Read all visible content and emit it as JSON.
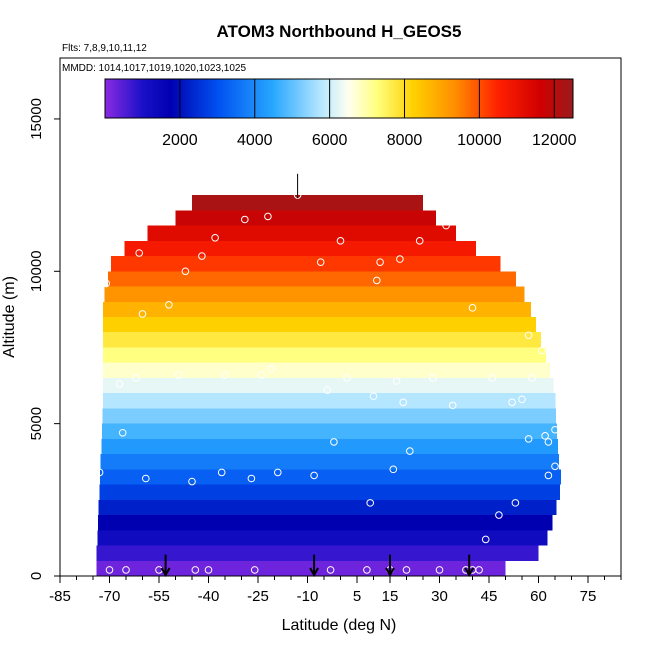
{
  "chart_data": {
    "type": "heatmap",
    "title": "ATOM3 Northbound H_GEOS5",
    "notes": {
      "flights": "Flts: 7,8,9,10,11,12",
      "dates": "MMDD: 1014,1017,1019,1020,1023,1025"
    },
    "xlabel": "Latitude (deg N)",
    "ylabel": "Altitude (m)",
    "xlim": [
      -85,
      85
    ],
    "ylim": [
      0,
      17000
    ],
    "x_major_ticks": [
      -85,
      -70,
      -55,
      -40,
      -25,
      -10,
      5,
      15,
      30,
      45,
      60,
      75
    ],
    "x_tick_labels": [
      "-85",
      "-70",
      "-55",
      "-40",
      "-25",
      "-10",
      "5",
      "15",
      "30",
      "45",
      "60",
      "75"
    ],
    "y_ticks": [
      0,
      5000,
      10000,
      15000
    ],
    "y_tick_labels": [
      "0",
      "5000",
      "10000",
      "15000"
    ],
    "colorbar": {
      "range": [
        0,
        12500
      ],
      "ticks": [
        2000,
        4000,
        6000,
        8000,
        10000,
        12000
      ],
      "tick_labels": [
        "2000",
        "4000",
        "6000",
        "8000",
        "10000",
        "12000"
      ],
      "stops": [
        [
          0,
          "#8a2be2"
        ],
        [
          0.08,
          "#1a10c8"
        ],
        [
          0.14,
          "#0000b0"
        ],
        [
          0.24,
          "#0050f0"
        ],
        [
          0.36,
          "#28a8ff"
        ],
        [
          0.46,
          "#b4e6ff"
        ],
        [
          0.52,
          "#fffff0"
        ],
        [
          0.58,
          "#ffff80"
        ],
        [
          0.66,
          "#ffd000"
        ],
        [
          0.75,
          "#ff8c00"
        ],
        [
          0.84,
          "#ff2000"
        ],
        [
          0.93,
          "#d00000"
        ],
        [
          1,
          "#9b1b1b"
        ]
      ]
    },
    "field": {
      "level_step": 500,
      "altitude_envelope": [
        [
          -74,
          500
        ],
        [
          -72,
          5500
        ],
        [
          -72,
          9000
        ],
        [
          -69,
          10500
        ],
        [
          -62,
          11000
        ],
        [
          -55,
          11500
        ],
        [
          -45,
          12000
        ],
        [
          -28,
          12500
        ],
        [
          5,
          12500
        ],
        [
          25,
          12000
        ],
        [
          33,
          11500
        ],
        [
          37,
          11000
        ],
        [
          45,
          10500
        ],
        [
          52,
          10000
        ],
        [
          57,
          9000
        ],
        [
          60,
          8000
        ],
        [
          63,
          7000
        ],
        [
          65,
          6000
        ],
        [
          66,
          4000
        ],
        [
          67,
          3000
        ],
        [
          65,
          2000
        ],
        [
          62,
          1000
        ],
        [
          58,
          500
        ],
        [
          50,
          0
        ],
        [
          -74,
          0
        ]
      ],
      "bottom_right_bound": 50
    },
    "flight_points": [
      [
        -74,
        5400
      ],
      [
        -73,
        3400
      ],
      [
        -71,
        9600
      ],
      [
        -70,
        200
      ],
      [
        -67,
        6300
      ],
      [
        -66,
        4700
      ],
      [
        -65,
        200
      ],
      [
        -62,
        6500
      ],
      [
        -61,
        10600
      ],
      [
        -60,
        8600
      ],
      [
        -59,
        3200
      ],
      [
        -55,
        200
      ],
      [
        -52,
        8900
      ],
      [
        -49,
        6600
      ],
      [
        -47,
        10000
      ],
      [
        -45,
        3100
      ],
      [
        -44,
        200
      ],
      [
        -42,
        10500
      ],
      [
        -40,
        200
      ],
      [
        -38,
        11100
      ],
      [
        -36,
        3400
      ],
      [
        -35,
        6600
      ],
      [
        -29,
        11700
      ],
      [
        -27,
        3200
      ],
      [
        -26,
        200
      ],
      [
        -24,
        6600
      ],
      [
        -22,
        11800
      ],
      [
        -21,
        6800
      ],
      [
        -19,
        3400
      ],
      [
        -13,
        12500
      ],
      [
        -8,
        3300
      ],
      [
        -6,
        10300
      ],
      [
        -4,
        6100
      ],
      [
        -3,
        200
      ],
      [
        -2,
        4400
      ],
      [
        0,
        11000
      ],
      [
        2,
        6500
      ],
      [
        8,
        200
      ],
      [
        9,
        2400
      ],
      [
        10,
        5900
      ],
      [
        11,
        9700
      ],
      [
        12,
        10300
      ],
      [
        15,
        200
      ],
      [
        16,
        3500
      ],
      [
        17,
        6400
      ],
      [
        18,
        10400
      ],
      [
        19,
        5700
      ],
      [
        20,
        200
      ],
      [
        21,
        4100
      ],
      [
        24,
        11000
      ],
      [
        28,
        6500
      ],
      [
        30,
        200
      ],
      [
        32,
        11500
      ],
      [
        34,
        5600
      ],
      [
        38,
        200
      ],
      [
        40,
        200
      ],
      [
        40,
        8800
      ],
      [
        42,
        200
      ],
      [
        44,
        1200
      ],
      [
        46,
        6500
      ],
      [
        48,
        2000
      ],
      [
        52,
        5700
      ],
      [
        53,
        2400
      ],
      [
        55,
        5800
      ],
      [
        57,
        7900
      ],
      [
        57,
        4500
      ],
      [
        58,
        6500
      ],
      [
        61,
        7400
      ],
      [
        62,
        4600
      ],
      [
        63,
        3300
      ],
      [
        63,
        4400
      ],
      [
        64,
        1200
      ],
      [
        65,
        3600
      ],
      [
        65,
        4800
      ],
      [
        66,
        8400
      ],
      [
        69,
        6700
      ],
      [
        73,
        3000
      ]
    ],
    "markers": {
      "flight_starts": [
        -53,
        -8,
        15,
        39
      ],
      "peak": [
        -13,
        12900
      ]
    }
  }
}
